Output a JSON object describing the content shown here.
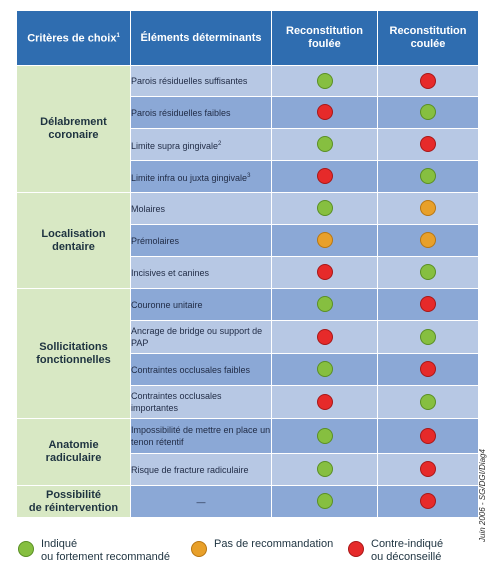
{
  "header": {
    "col1": "Critères de choix",
    "col1_sup": "1",
    "col2": "Éléments déterminants",
    "col3_line1": "Reconstitution",
    "col3_line2": "foulée",
    "col4_line1": "Reconstitution",
    "col4_line2": "coulée"
  },
  "groups": [
    {
      "label_line1": "Délabrement",
      "label_line2": "coronaire",
      "rows": [
        {
          "text": "Parois résiduelles suffisantes",
          "sup": "",
          "foulee": "green",
          "coulee": "red"
        },
        {
          "text": "Parois résiduelles faibles",
          "sup": "",
          "foulee": "red",
          "coulee": "green"
        },
        {
          "text": "Limite supra gingivale",
          "sup": "2",
          "foulee": "green",
          "coulee": "red"
        },
        {
          "text": "Limite infra ou juxta gingivale",
          "sup": "3",
          "foulee": "red",
          "coulee": "green"
        }
      ]
    },
    {
      "label_line1": "Localisation",
      "label_line2": "dentaire",
      "rows": [
        {
          "text": "Molaires",
          "sup": "",
          "foulee": "green",
          "coulee": "orange"
        },
        {
          "text": "Prémolaires",
          "sup": "",
          "foulee": "orange",
          "coulee": "orange"
        },
        {
          "text": "Incisives et canines",
          "sup": "",
          "foulee": "red",
          "coulee": "green"
        }
      ]
    },
    {
      "label_line1": "Sollicitations",
      "label_line2": "fonctionnelles",
      "rows": [
        {
          "text": "Couronne unitaire",
          "sup": "",
          "foulee": "green",
          "coulee": "red"
        },
        {
          "text": "Ancrage de bridge ou support de PAP",
          "sup": "",
          "foulee": "red",
          "coulee": "green"
        },
        {
          "text": "Contraintes occlusales faibles",
          "sup": "",
          "foulee": "green",
          "coulee": "red"
        },
        {
          "text": "Contraintes occlusales importantes",
          "sup": "",
          "foulee": "red",
          "coulee": "green"
        }
      ]
    },
    {
      "label_line1": "Anatomie",
      "label_line2": "radiculaire",
      "rows": [
        {
          "text": "Impossibilité de mettre en place un tenon rétentif",
          "sup": "",
          "foulee": "green",
          "coulee": "red"
        },
        {
          "text": "Risque de fracture radiculaire",
          "sup": "",
          "foulee": "green",
          "coulee": "red"
        }
      ]
    },
    {
      "label_line1": "Possibilité",
      "label_line2": "de réintervention",
      "rows": [
        {
          "text": "—",
          "sup": "",
          "foulee": "green",
          "coulee": "red"
        }
      ]
    }
  ],
  "side_note": "Juin 2006 - SG/DGI/Diag4",
  "legend": [
    {
      "color": "green",
      "line1": "Indiqué",
      "line2": "ou fortement recommandé"
    },
    {
      "color": "orange",
      "line1": "Pas de recommandation",
      "line2": ""
    },
    {
      "color": "red",
      "line1": "Contre-indiqué",
      "line2": "ou déconseillé"
    }
  ],
  "colors": {
    "header_bg": "#2f6db0",
    "criteria_bg": "#d8e8c4",
    "row_light": "#b7c8e4",
    "row_dark": "#8ba8d6",
    "green": "#86bf40",
    "orange": "#e8a02a",
    "red": "#e62a2a"
  }
}
